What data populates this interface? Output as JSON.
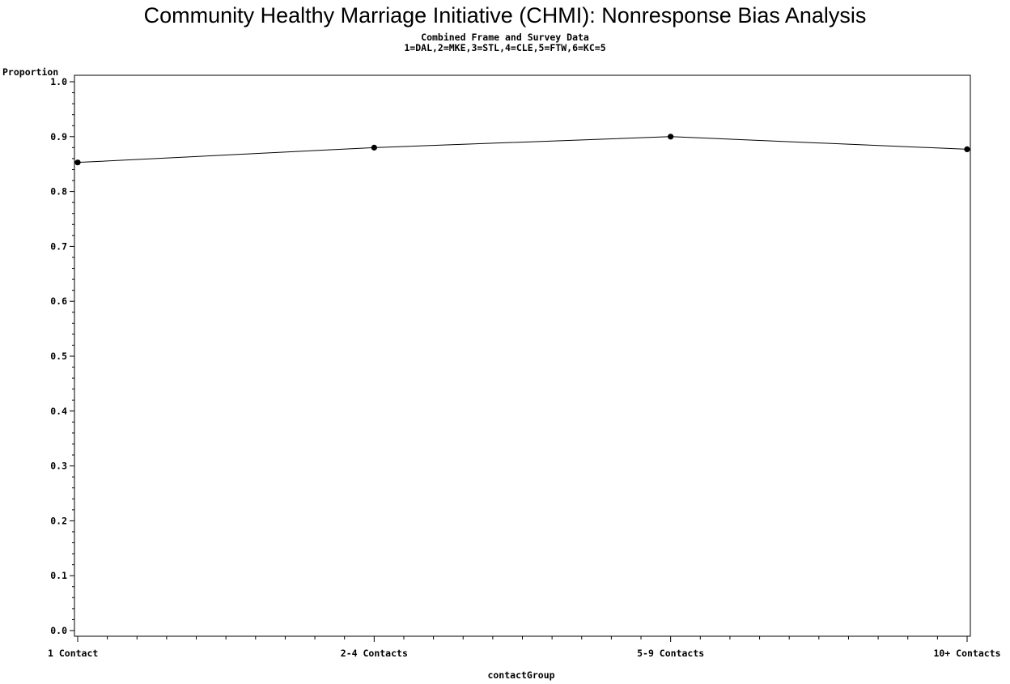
{
  "chart_data": {
    "type": "line",
    "title": "Community Healthy Marriage Initiative (CHMI): Nonresponse Bias Analysis",
    "subtitle_lines": [
      "Combined Frame and Survey Data",
      "1=DAL,2=MKE,3=STL,4=CLE,5=FTW,6=KC=5"
    ],
    "xlabel": "contactGroup",
    "ylabel": "Proportion",
    "categories": [
      "1 Contact",
      "2-4 Contacts",
      "5-9 Contacts",
      "10+ Contacts"
    ],
    "series": [
      {
        "values": [
          0.853,
          0.88,
          0.9,
          0.877
        ],
        "color": "#000000",
        "marker": "dot"
      }
    ],
    "ylim": [
      0.0,
      1.0
    ],
    "y_ticks": [
      0.0,
      0.1,
      0.2,
      0.3,
      0.4,
      0.5,
      0.6,
      0.7,
      0.8,
      0.9,
      1.0
    ],
    "y_tick_labels": [
      "0.0",
      "0.1",
      "0.2",
      "0.3",
      "0.4",
      "0.5",
      "0.6",
      "0.7",
      "0.8",
      "0.9",
      "1.0"
    ],
    "y_minor_per_major": 5,
    "x_minor_per_gap": 9,
    "grid": false,
    "legend": "none"
  }
}
